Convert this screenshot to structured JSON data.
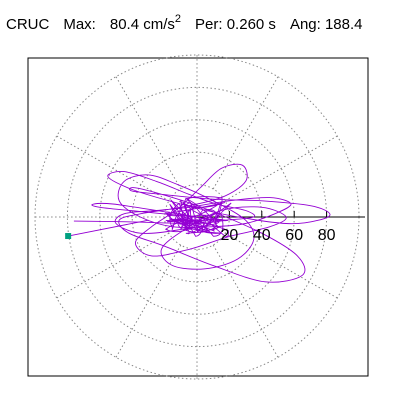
{
  "header": {
    "station": "CRUC",
    "max_label": "Max:",
    "max_value": "80.4",
    "max_unit": "cm/s",
    "max_exp": "2",
    "per_label": "Per:",
    "per_value": "0.260 s",
    "ang_label": "Ang:",
    "ang_value": "188.4"
  },
  "chart_data": {
    "type": "polar-orbit",
    "ticks": [
      20,
      40,
      60,
      80
    ],
    "tick_labels": [
      "20",
      "40",
      "60",
      "80"
    ],
    "rmax": 100,
    "angle_lines_deg": [
      0,
      30,
      60,
      90,
      120,
      150,
      180,
      210,
      240,
      270,
      300,
      330
    ],
    "grid": "dotted",
    "colors": {
      "trace": "#9400d3",
      "marker": "#00a080",
      "grid": "#888888",
      "axis": "#000000"
    },
    "peak": {
      "magnitude": 80.4,
      "angle_deg": 188.4
    },
    "path": [
      [
        -76,
        -2.5
      ],
      [
        -40,
        -3
      ],
      [
        0,
        -4
      ],
      [
        18,
        -2
      ],
      [
        35,
        0
      ],
      [
        30,
        4
      ],
      [
        12,
        8
      ],
      [
        -5,
        14
      ],
      [
        -25,
        22
      ],
      [
        -45,
        28
      ],
      [
        -55,
        25
      ],
      [
        -40,
        17
      ],
      [
        -10,
        8
      ],
      [
        20,
        1
      ],
      [
        55,
        -4
      ],
      [
        75,
        -2
      ],
      [
        82,
        2
      ],
      [
        70,
        7
      ],
      [
        40,
        10
      ],
      [
        10,
        11
      ],
      [
        -22,
        14
      ],
      [
        -40,
        16
      ],
      [
        -38,
        18
      ],
      [
        -15,
        12
      ],
      [
        8,
        4
      ],
      [
        40,
        -10
      ],
      [
        62,
        -24
      ],
      [
        65,
        -36
      ],
      [
        42,
        -40
      ],
      [
        10,
        -30
      ],
      [
        -20,
        -18
      ],
      [
        -42,
        -10
      ],
      [
        -48,
        -2
      ],
      [
        -35,
        2
      ],
      [
        -10,
        6
      ],
      [
        15,
        12
      ],
      [
        30,
        22
      ],
      [
        28,
        32
      ],
      [
        15,
        30
      ],
      [
        2,
        18
      ],
      [
        -12,
        5
      ],
      [
        -28,
        -6
      ],
      [
        -38,
        -16
      ],
      [
        -28,
        -24
      ],
      [
        -5,
        -20
      ],
      [
        20,
        -12
      ],
      [
        45,
        -6
      ],
      [
        55,
        0
      ],
      [
        40,
        6
      ],
      [
        15,
        4
      ],
      [
        -8,
        -8
      ],
      [
        -22,
        -20
      ],
      [
        -15,
        -30
      ],
      [
        5,
        -32
      ],
      [
        25,
        -26
      ],
      [
        35,
        -14
      ],
      [
        30,
        -2
      ],
      [
        10,
        10
      ],
      [
        -12,
        20
      ],
      [
        -30,
        26
      ],
      [
        -45,
        22
      ],
      [
        -48,
        10
      ],
      [
        -35,
        0
      ],
      [
        -15,
        -6
      ],
      [
        10,
        -6
      ],
      [
        30,
        -4
      ],
      [
        48,
        2
      ],
      [
        58,
        8
      ],
      [
        45,
        12
      ],
      [
        20,
        10
      ],
      [
        -5,
        6
      ],
      [
        -25,
        4
      ],
      [
        -45,
        2
      ],
      [
        -50,
        -4
      ],
      [
        -35,
        -10
      ],
      [
        -12,
        -8
      ],
      [
        12,
        -2
      ],
      [
        -60,
        6
      ],
      [
        -52,
        8
      ],
      [
        0,
        0
      ]
    ]
  }
}
